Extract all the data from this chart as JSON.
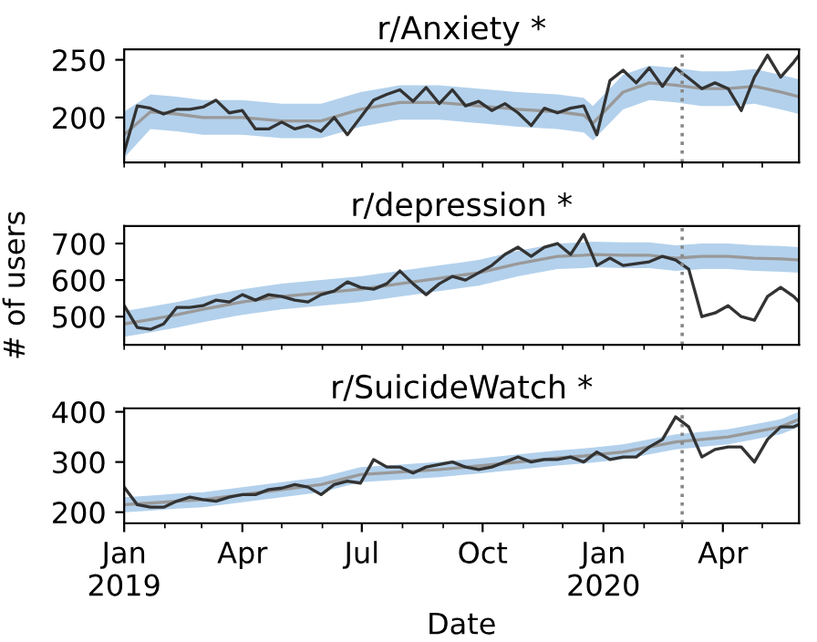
{
  "chart_data": [
    {
      "type": "line",
      "title": "r/Anxiety *",
      "tick_labels": "y",
      "grid": false,
      "x": [
        "2019-01-01",
        "2019-01-11",
        "2019-01-21",
        "2019-01-31",
        "2019-02-10",
        "2019-02-20",
        "2019-03-02",
        "2019-03-12",
        "2019-03-22",
        "2019-04-01",
        "2019-04-11",
        "2019-04-21",
        "2019-05-01",
        "2019-05-11",
        "2019-05-21",
        "2019-05-31",
        "2019-06-10",
        "2019-06-20",
        "2019-06-30",
        "2019-07-10",
        "2019-07-20",
        "2019-07-30",
        "2019-08-09",
        "2019-08-19",
        "2019-08-29",
        "2019-09-08",
        "2019-09-18",
        "2019-09-28",
        "2019-10-08",
        "2019-10-18",
        "2019-10-28",
        "2019-11-07",
        "2019-11-17",
        "2019-11-27",
        "2019-12-07",
        "2019-12-17",
        "2019-12-27",
        "2020-01-06",
        "2020-01-16",
        "2020-01-26",
        "2020-02-05",
        "2020-02-15",
        "2020-02-25",
        "2020-03-06",
        "2020-03-16",
        "2020-03-26",
        "2020-04-05",
        "2020-04-15",
        "2020-04-25",
        "2020-05-05",
        "2020-05-15",
        "2020-05-25",
        "2020-05-29"
      ],
      "series": [
        {
          "color": "#999999",
          "x": [
            "2019-01-01",
            "2019-01-21",
            "2019-02-10",
            "2019-03-02",
            "2019-04-01",
            "2019-05-01",
            "2019-05-31",
            "2019-06-30",
            "2019-07-30",
            "2019-08-29",
            "2019-09-28",
            "2019-10-28",
            "2019-11-27",
            "2019-12-17",
            "2019-12-24",
            "2020-01-16",
            "2020-02-05",
            "2020-02-25",
            "2020-03-16",
            "2020-04-05",
            "2020-04-25",
            "2020-05-15",
            "2020-05-29"
          ],
          "values": [
            185,
            205,
            203,
            200,
            200,
            197,
            197,
            207,
            213,
            213,
            210,
            207,
            205,
            202,
            195,
            222,
            230,
            228,
            225,
            225,
            227,
            222,
            218
          ],
          "lower": [
            165,
            190,
            188,
            185,
            185,
            182,
            182,
            192,
            198,
            198,
            195,
            192,
            190,
            187,
            180,
            207,
            215,
            213,
            210,
            210,
            212,
            207,
            203
          ],
          "upper": [
            205,
            220,
            218,
            215,
            215,
            212,
            212,
            222,
            228,
            228,
            225,
            222,
            220,
            217,
            210,
            237,
            245,
            243,
            240,
            240,
            242,
            237,
            233
          ]
        },
        {
          "color": "#333333",
          "values": [
            170,
            210,
            208,
            203,
            207,
            207,
            209,
            215,
            204,
            206,
            190,
            190,
            196,
            190,
            193,
            188,
            200,
            185,
            200,
            215,
            220,
            224,
            214,
            226,
            212,
            224,
            210,
            214,
            206,
            212,
            204,
            193,
            208,
            204,
            208,
            210,
            185,
            232,
            241,
            230,
            243,
            227,
            243,
            234,
            225,
            230,
            225,
            206,
            235,
            254,
            235,
            248,
            254
          ]
        }
      ],
      "ylim": [
        161,
        259
      ],
      "yticks": [
        200,
        250
      ],
      "xlim": [
        "2019-01-01",
        "2020-05-29"
      ],
      "xticks": [
        {
          "value": "2019-01-01",
          "label": null
        },
        {
          "value": "2019-02-01",
          "label": null
        },
        {
          "value": "2019-03-01",
          "label": null
        },
        {
          "value": "2019-04-01",
          "label": null
        },
        {
          "value": "2019-05-01",
          "label": null
        },
        {
          "value": "2019-06-01",
          "label": null
        },
        {
          "value": "2019-07-01",
          "label": null
        },
        {
          "value": "2019-08-01",
          "label": null
        },
        {
          "value": "2019-09-01",
          "label": null
        },
        {
          "value": "2019-10-01",
          "label": null
        },
        {
          "value": "2019-11-01",
          "label": null
        },
        {
          "value": "2019-12-01",
          "label": null
        },
        {
          "value": "2020-01-01",
          "label": null
        },
        {
          "value": "2020-02-01",
          "label": null
        },
        {
          "value": "2020-03-01",
          "label": null
        },
        {
          "value": "2020-04-01",
          "label": null
        },
        {
          "value": "2020-05-01",
          "label": null
        }
      ],
      "ref_lines": [
        {
          "axis": "x",
          "value": "2020-03-01",
          "color": "#888888",
          "line_style": "dotted"
        }
      ]
    },
    {
      "type": "line",
      "title": "r/depression *",
      "ylabel": "# of users",
      "tick_labels": "y",
      "grid": false,
      "x": [
        "2019-01-01",
        "2019-01-11",
        "2019-01-21",
        "2019-01-31",
        "2019-02-10",
        "2019-02-20",
        "2019-03-02",
        "2019-03-12",
        "2019-03-22",
        "2019-04-01",
        "2019-04-11",
        "2019-04-21",
        "2019-05-01",
        "2019-05-11",
        "2019-05-21",
        "2019-05-31",
        "2019-06-10",
        "2019-06-20",
        "2019-06-30",
        "2019-07-10",
        "2019-07-20",
        "2019-07-30",
        "2019-08-09",
        "2019-08-19",
        "2019-08-29",
        "2019-09-08",
        "2019-09-18",
        "2019-09-28",
        "2019-10-08",
        "2019-10-18",
        "2019-10-28",
        "2019-11-07",
        "2019-11-17",
        "2019-11-27",
        "2019-12-07",
        "2019-12-17",
        "2019-12-27",
        "2020-01-06",
        "2020-01-16",
        "2020-01-26",
        "2020-02-05",
        "2020-02-15",
        "2020-02-25",
        "2020-03-06",
        "2020-03-16",
        "2020-03-26",
        "2020-04-05",
        "2020-04-15",
        "2020-04-25",
        "2020-05-05",
        "2020-05-15",
        "2020-05-25",
        "2020-05-29"
      ],
      "series": [
        {
          "color": "#999999",
          "x": [
            "2019-01-01",
            "2019-01-21",
            "2019-02-10",
            "2019-03-02",
            "2019-04-01",
            "2019-05-01",
            "2019-05-31",
            "2019-06-30",
            "2019-07-30",
            "2019-08-29",
            "2019-09-28",
            "2019-10-28",
            "2019-11-27",
            "2019-12-17",
            "2019-12-24",
            "2020-01-16",
            "2020-02-05",
            "2020-02-25",
            "2020-03-16",
            "2020-04-05",
            "2020-04-25",
            "2020-05-15",
            "2020-05-29"
          ],
          "values": [
            480,
            492,
            505,
            520,
            540,
            555,
            565,
            575,
            590,
            605,
            620,
            645,
            665,
            668,
            670,
            668,
            668,
            660,
            665,
            665,
            660,
            658,
            655
          ],
          "lower": [
            445,
            457,
            470,
            485,
            505,
            520,
            530,
            540,
            555,
            570,
            585,
            610,
            630,
            633,
            635,
            633,
            633,
            625,
            630,
            630,
            625,
            623,
            620
          ],
          "upper": [
            515,
            527,
            540,
            555,
            575,
            590,
            600,
            610,
            625,
            640,
            655,
            680,
            700,
            703,
            705,
            703,
            703,
            695,
            700,
            700,
            695,
            693,
            690
          ]
        },
        {
          "color": "#333333",
          "values": [
            530,
            470,
            465,
            480,
            525,
            525,
            530,
            545,
            540,
            560,
            545,
            560,
            555,
            545,
            540,
            560,
            570,
            595,
            580,
            575,
            590,
            625,
            590,
            560,
            590,
            610,
            600,
            620,
            640,
            670,
            690,
            665,
            690,
            700,
            670,
            725,
            640,
            660,
            640,
            645,
            650,
            665,
            655,
            630,
            500,
            510,
            530,
            500,
            490,
            555,
            580,
            555,
            540
          ]
        }
      ],
      "ylim": [
        423,
        748
      ],
      "yticks": [
        500,
        600,
        700
      ],
      "xlim": [
        "2019-01-01",
        "2020-05-29"
      ],
      "xticks": [
        {
          "value": "2019-01-01",
          "label": null
        },
        {
          "value": "2019-02-01",
          "label": null
        },
        {
          "value": "2019-03-01",
          "label": null
        },
        {
          "value": "2019-04-01",
          "label": null
        },
        {
          "value": "2019-05-01",
          "label": null
        },
        {
          "value": "2019-06-01",
          "label": null
        },
        {
          "value": "2019-07-01",
          "label": null
        },
        {
          "value": "2019-08-01",
          "label": null
        },
        {
          "value": "2019-09-01",
          "label": null
        },
        {
          "value": "2019-10-01",
          "label": null
        },
        {
          "value": "2019-11-01",
          "label": null
        },
        {
          "value": "2019-12-01",
          "label": null
        },
        {
          "value": "2020-01-01",
          "label": null
        },
        {
          "value": "2020-02-01",
          "label": null
        },
        {
          "value": "2020-03-01",
          "label": null
        },
        {
          "value": "2020-04-01",
          "label": null
        },
        {
          "value": "2020-05-01",
          "label": null
        }
      ],
      "ref_lines": [
        {
          "axis": "x",
          "value": "2020-03-01",
          "color": "#888888",
          "line_style": "dotted"
        }
      ]
    },
    {
      "type": "line",
      "title": "r/SuicideWatch *",
      "xlabel": "Date",
      "grid": false,
      "x": [
        "2019-01-01",
        "2019-01-11",
        "2019-01-21",
        "2019-01-31",
        "2019-02-10",
        "2019-02-20",
        "2019-03-02",
        "2019-03-12",
        "2019-03-22",
        "2019-04-01",
        "2019-04-11",
        "2019-04-21",
        "2019-05-01",
        "2019-05-11",
        "2019-05-21",
        "2019-05-31",
        "2019-06-10",
        "2019-06-20",
        "2019-06-30",
        "2019-07-10",
        "2019-07-20",
        "2019-07-30",
        "2019-08-09",
        "2019-08-19",
        "2019-08-29",
        "2019-09-08",
        "2019-09-18",
        "2019-09-28",
        "2019-10-08",
        "2019-10-18",
        "2019-10-28",
        "2019-11-07",
        "2019-11-17",
        "2019-11-27",
        "2019-12-07",
        "2019-12-17",
        "2019-12-27",
        "2020-01-06",
        "2020-01-16",
        "2020-01-26",
        "2020-02-05",
        "2020-02-15",
        "2020-02-25",
        "2020-03-06",
        "2020-03-16",
        "2020-03-26",
        "2020-04-05",
        "2020-04-15",
        "2020-04-25",
        "2020-05-05",
        "2020-05-15",
        "2020-05-25",
        "2020-05-29"
      ],
      "series": [
        {
          "color": "#999999",
          "x": [
            "2019-01-01",
            "2019-01-21",
            "2019-02-10",
            "2019-03-02",
            "2019-04-01",
            "2019-05-01",
            "2019-05-31",
            "2019-06-30",
            "2019-07-30",
            "2019-08-29",
            "2019-09-28",
            "2019-10-28",
            "2019-11-27",
            "2019-12-17",
            "2019-12-24",
            "2020-01-16",
            "2020-02-05",
            "2020-02-25",
            "2020-03-16",
            "2020-04-05",
            "2020-04-25",
            "2020-05-15",
            "2020-05-29"
          ],
          "values": [
            215,
            218,
            222,
            225,
            235,
            245,
            255,
            275,
            280,
            285,
            292,
            300,
            308,
            312,
            314,
            320,
            330,
            340,
            345,
            350,
            360,
            370,
            385
          ],
          "lower": [
            200,
            203,
            207,
            210,
            220,
            230,
            240,
            260,
            265,
            270,
            277,
            285,
            293,
            297,
            299,
            305,
            315,
            325,
            330,
            335,
            345,
            355,
            370
          ],
          "upper": [
            230,
            233,
            237,
            240,
            250,
            260,
            270,
            290,
            295,
            300,
            307,
            315,
            323,
            327,
            329,
            335,
            345,
            355,
            360,
            365,
            375,
            385,
            400
          ]
        },
        {
          "color": "#333333",
          "values": [
            250,
            215,
            210,
            210,
            222,
            230,
            225,
            222,
            230,
            235,
            235,
            245,
            248,
            255,
            250,
            235,
            255,
            262,
            258,
            305,
            290,
            290,
            278,
            290,
            295,
            300,
            290,
            285,
            290,
            300,
            310,
            300,
            305,
            305,
            310,
            300,
            320,
            305,
            310,
            310,
            330,
            345,
            390,
            370,
            310,
            325,
            330,
            330,
            300,
            345,
            370,
            370,
            375
          ]
        }
      ],
      "ylim": [
        178,
        407
      ],
      "yticks": [
        200,
        300,
        400
      ],
      "xlim": [
        "2019-01-01",
        "2020-05-29"
      ],
      "xticks": [
        {
          "value": "2019-01-01",
          "label": "Jan\n2019"
        },
        {
          "value": "2019-02-01",
          "label": null
        },
        {
          "value": "2019-03-01",
          "label": null
        },
        {
          "value": "2019-04-01",
          "label": "Apr"
        },
        {
          "value": "2019-05-01",
          "label": null
        },
        {
          "value": "2019-06-01",
          "label": null
        },
        {
          "value": "2019-07-01",
          "label": "Jul"
        },
        {
          "value": "2019-08-01",
          "label": null
        },
        {
          "value": "2019-09-01",
          "label": null
        },
        {
          "value": "2019-10-01",
          "label": "Oct"
        },
        {
          "value": "2019-11-01",
          "label": null
        },
        {
          "value": "2019-12-01",
          "label": null
        },
        {
          "value": "2020-01-01",
          "label": "Jan\n2020"
        },
        {
          "value": "2020-02-01",
          "label": null
        },
        {
          "value": "2020-03-01",
          "label": null
        },
        {
          "value": "2020-04-01",
          "label": "Apr"
        },
        {
          "value": "2020-05-01",
          "label": null
        }
      ],
      "ref_lines": [
        {
          "axis": "x",
          "value": "2020-03-01",
          "color": "#888888",
          "line_style": "dotted"
        }
      ]
    }
  ]
}
